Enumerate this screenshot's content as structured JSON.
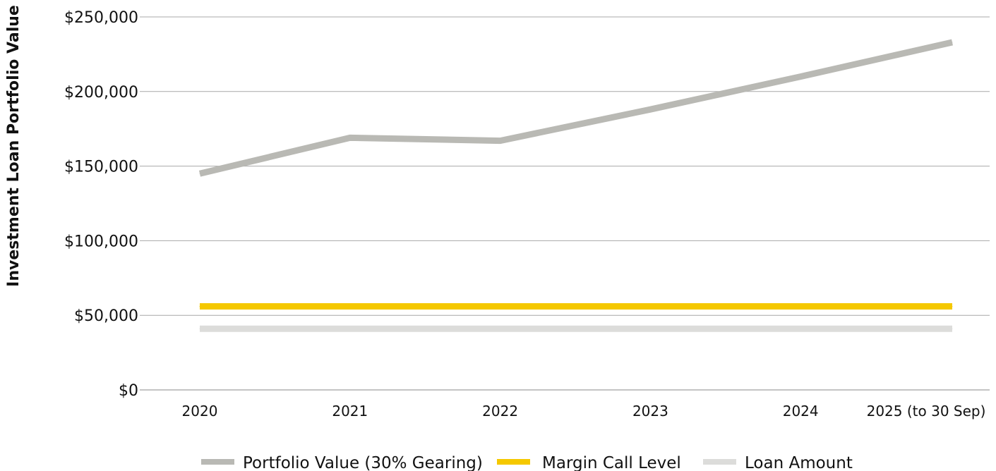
{
  "chart_data": {
    "type": "line",
    "title": "",
    "xlabel": "",
    "ylabel": "Investment Loan Portfolio Value",
    "categories": [
      "2020",
      "2021",
      "2022",
      "2023",
      "2024",
      "2025 (to 30 Sep)"
    ],
    "ylim": [
      0,
      250000
    ],
    "yticks": [
      0,
      50000,
      100000,
      150000,
      200000,
      250000
    ],
    "ytick_labels": [
      "$0",
      "$50,000",
      "$100,000",
      "$150,000",
      "$200,000",
      "$250,000"
    ],
    "grid": "horizontal",
    "legend_position": "bottom",
    "series": [
      {
        "name": "Portfolio Value (30% Gearing)",
        "color": "#b9b9b4",
        "values": [
          145000,
          169000,
          167000,
          188000,
          210000,
          233000
        ]
      },
      {
        "name": "Margin Call Level",
        "color": "#f5c800",
        "values": [
          56000,
          56000,
          56000,
          56000,
          56000,
          56000
        ]
      },
      {
        "name": "Loan Amount",
        "color": "#dcdcda",
        "values": [
          41000,
          41000,
          41000,
          41000,
          41000,
          41000
        ]
      }
    ]
  }
}
